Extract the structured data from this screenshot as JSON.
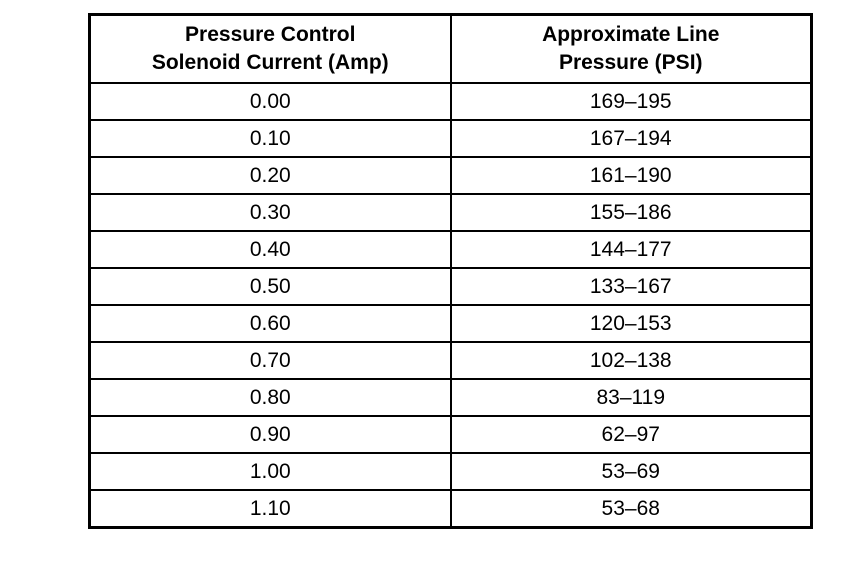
{
  "table": {
    "header": {
      "col1_line1": "Pressure Control",
      "col1_line2": "Solenoid Current (Amp)",
      "col2_line1": "Approximate Line",
      "col2_line2": "Pressure (PSI)"
    },
    "rows": [
      {
        "current": "0.00",
        "pressure": "169–195"
      },
      {
        "current": "0.10",
        "pressure": "167–194"
      },
      {
        "current": "0.20",
        "pressure": "161–190"
      },
      {
        "current": "0.30",
        "pressure": "155–186"
      },
      {
        "current": "0.40",
        "pressure": "144–177"
      },
      {
        "current": "0.50",
        "pressure": "133–167"
      },
      {
        "current": "0.60",
        "pressure": "120–153"
      },
      {
        "current": "0.70",
        "pressure": "102–138"
      },
      {
        "current": "0.80",
        "pressure": "83–119"
      },
      {
        "current": "0.90",
        "pressure": "62–97"
      },
      {
        "current": "1.00",
        "pressure": "53–69"
      },
      {
        "current": "1.10",
        "pressure": "53–68"
      }
    ]
  },
  "colors": {
    "border": "#000000",
    "text": "#000000",
    "background": "#ffffff"
  }
}
